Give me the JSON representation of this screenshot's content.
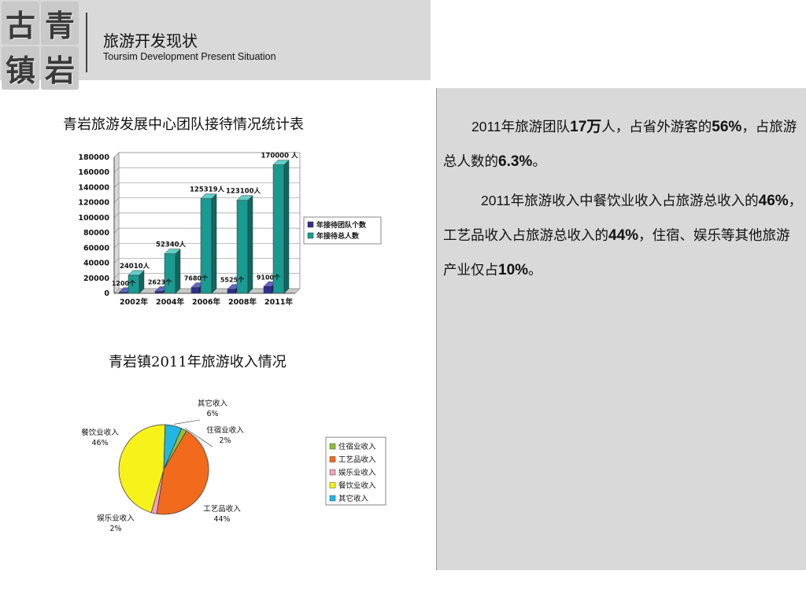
{
  "header": {
    "logo_chars": [
      "古",
      "青",
      "镇",
      "岩"
    ],
    "title_cn": "旅游开发现状",
    "title_en": "Toursim Development Present Situation"
  },
  "text_panel": {
    "p1": [
      {
        "t": "2011",
        "s": "num"
      },
      {
        "t": "年旅游团队",
        "s": "plain"
      },
      {
        "t": "17万",
        "s": "bold"
      },
      {
        "t": "人，占省外游客的",
        "s": "plain"
      },
      {
        "t": "56%",
        "s": "bold"
      },
      {
        "t": "，占旅游总人数的",
        "s": "plain"
      },
      {
        "t": "6.3%",
        "s": "bold"
      },
      {
        "t": "。",
        "s": "plain"
      }
    ],
    "p2": [
      {
        "t": "2011",
        "s": "num"
      },
      {
        "t": "年旅游收入中餐饮业收入占旅游总收入的",
        "s": "plain"
      },
      {
        "t": "46%",
        "s": "bold"
      },
      {
        "t": "，工艺品收入占旅游总收入的",
        "s": "plain"
      },
      {
        "t": "44%",
        "s": "bold"
      },
      {
        "t": "，住宿、娱乐等其他旅游产业仅占",
        "s": "plain"
      },
      {
        "t": "10%",
        "s": "bold"
      },
      {
        "t": "。",
        "s": "plain"
      }
    ]
  },
  "chart_data": [
    {
      "type": "bar",
      "title": "青岩旅游发展中心团队接待情况统计表",
      "categories": [
        "2002年",
        "2004年",
        "2006年",
        "2008年",
        "2011年"
      ],
      "series": [
        {
          "name": "年接待团队个数",
          "color": "#2d2f8f",
          "values": [
            1200,
            2623,
            7680,
            5525,
            9100
          ],
          "labels": [
            "1200个",
            "2623个",
            "7680个",
            "5525个",
            "9100个"
          ]
        },
        {
          "name": "年接待总人数",
          "color": "#1a9a90",
          "values": [
            24010,
            52340,
            125319,
            123100,
            170000
          ],
          "labels": [
            "24010人",
            "52340人",
            "125319人",
            "123100人",
            "170000 人"
          ]
        }
      ],
      "yticks": [
        0,
        20000,
        40000,
        60000,
        80000,
        100000,
        120000,
        140000,
        160000,
        180000
      ],
      "ylim": [
        0,
        180000
      ],
      "grid": true,
      "legend": "right"
    },
    {
      "type": "pie",
      "title": "青岩镇2011年旅游收入情况",
      "slices": [
        {
          "label": "住宿业收入",
          "value": 2,
          "pct": "2%",
          "color": "#8fbf3c"
        },
        {
          "label": "工艺品收入",
          "value": 44,
          "pct": "44%",
          "color": "#f26a1b"
        },
        {
          "label": "娱乐业收入",
          "value": 2,
          "pct": "2%",
          "color": "#f4a0c0"
        },
        {
          "label": "餐饮业收入",
          "value": 46,
          "pct": "46%",
          "color": "#f7f21a"
        },
        {
          "label": "其它收入",
          "value": 6,
          "pct": "6%",
          "color": "#22b5e6"
        }
      ],
      "legend": "right"
    }
  ]
}
